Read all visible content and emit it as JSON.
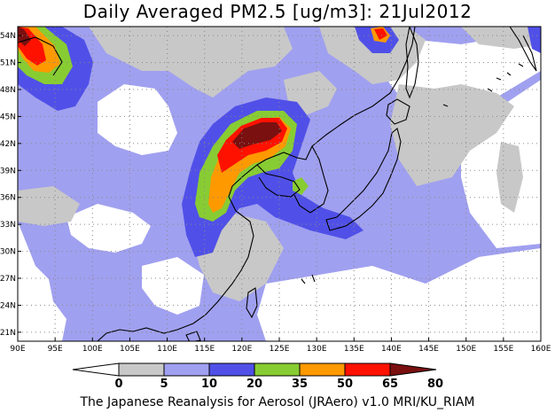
{
  "title": "Daily Averaged PM2.5 [ug/m3]: 21Jul2012",
  "footer": "The Japanese Reanalysis for Aerosol (JRAero) v1.0 MRI/KU_RIAM",
  "map": {
    "lon_labels": [
      "90E",
      "95E",
      "100E",
      "105E",
      "110E",
      "115E",
      "120E",
      "125E",
      "130E",
      "135E",
      "140E",
      "145E",
      "150E",
      "155E",
      "160E"
    ],
    "lat_labels": [
      "21N",
      "24N",
      "27N",
      "30N",
      "33N",
      "36N",
      "39N",
      "42N",
      "45N",
      "48N",
      "51N",
      "54N"
    ],
    "lon_range": [
      90,
      160
    ],
    "lat_range": [
      20,
      55
    ],
    "grid": true
  },
  "colorbar": {
    "ticks": [
      "0",
      "5",
      "10",
      "20",
      "35",
      "50",
      "65",
      "80"
    ],
    "colors": [
      "#ffffff",
      "#c8c8c8",
      "#a0a0f0",
      "#5050e8",
      "#88cc33",
      "#ff9900",
      "#ff1100",
      "#7a1010"
    ]
  },
  "colors": {
    "white": "#ffffff",
    "gray": "#c8c8c8",
    "lightblue": "#a0a0f0",
    "blue": "#5050e8",
    "green": "#88cc33",
    "orange": "#ff9900",
    "red": "#ff1100",
    "darkred": "#7a1010"
  }
}
